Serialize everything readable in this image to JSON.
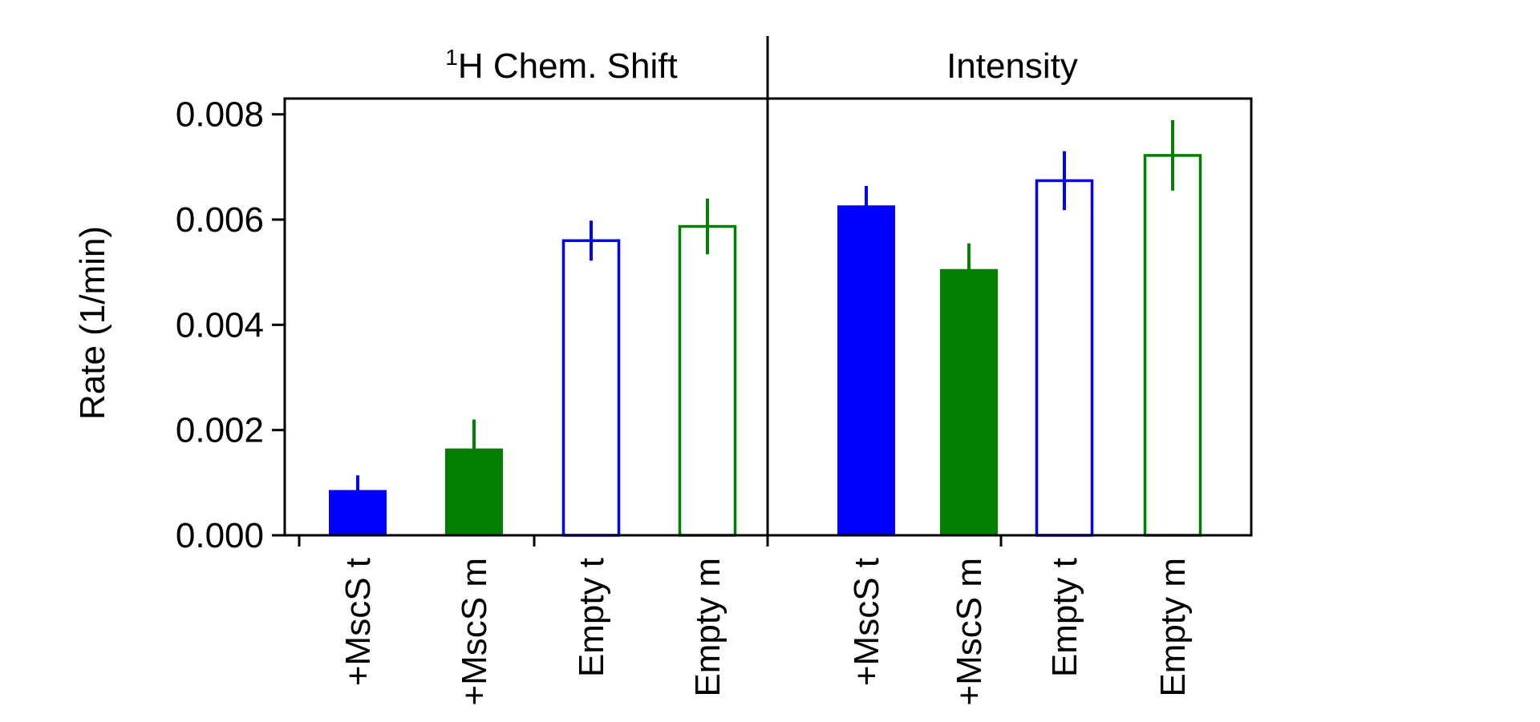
{
  "chart_data": {
    "type": "bar",
    "ylabel": "Rate (1/min)",
    "ylim": [
      0,
      0.0083
    ],
    "yticks": [
      "0.000",
      "0.002",
      "0.004",
      "0.006",
      "0.008"
    ],
    "ytick_values": [
      0,
      0.002,
      0.004,
      0.006,
      0.008
    ],
    "panels": [
      {
        "title_sup": "1",
        "title": "H Chem. Shift",
        "categories": [
          "+MscS t",
          "+MscS m",
          "Empty t",
          "Empty m"
        ],
        "values": [
          0.00086,
          0.00165,
          0.0056,
          0.00587
        ],
        "errors": [
          0.00028,
          0.00055,
          0.00038,
          0.00053
        ],
        "fills": [
          "solid",
          "solid",
          "hollow",
          "hollow"
        ],
        "colors": [
          "#0000ff",
          "#007f00",
          "#0000ff",
          "#007f00"
        ]
      },
      {
        "title_sup": "",
        "title": "Intensity",
        "categories": [
          "+MscS t",
          "+MscS m",
          "Empty t",
          "Empty m"
        ],
        "values": [
          0.00627,
          0.00506,
          0.00674,
          0.00722
        ],
        "errors": [
          0.00037,
          0.00049,
          0.00056,
          0.00067
        ],
        "fills": [
          "solid",
          "solid",
          "hollow",
          "hollow"
        ],
        "colors": [
          "#0000ff",
          "#007f00",
          "#0000ff",
          "#007f00"
        ]
      }
    ]
  }
}
